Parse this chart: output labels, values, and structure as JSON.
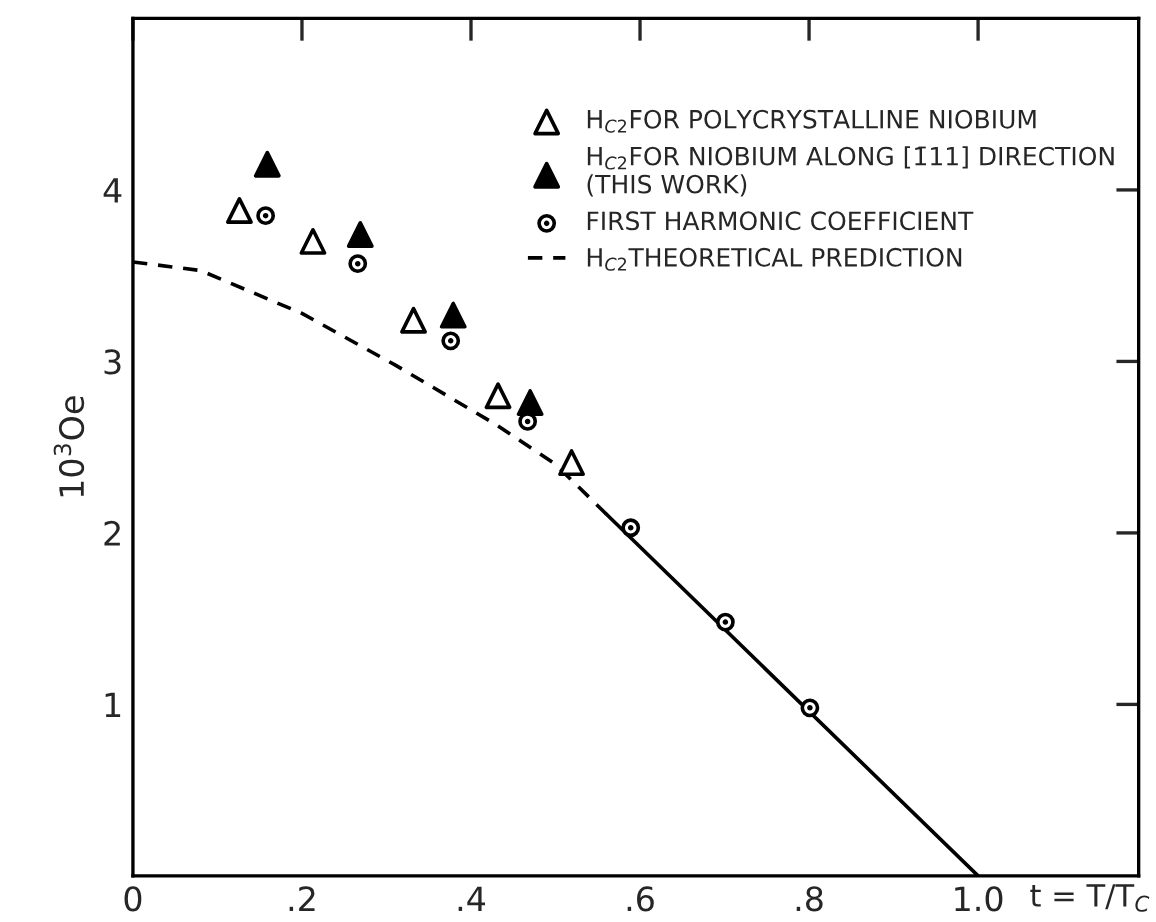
{
  "chart_data": {
    "type": "scatter",
    "xlabel": "t = T/T$_{C}$",
    "ylabel": "10$^{3}$Oe",
    "xlim": [
      0,
      1.19
    ],
    "ylim": [
      0,
      5.0
    ],
    "xticks": [
      0,
      {
        "value": 0.2,
        "label": ".2"
      },
      {
        "value": 0.4,
        "label": ".4"
      },
      {
        "value": 0.6,
        "label": ".6"
      },
      {
        "value": 0.8,
        "label": ".8"
      },
      {
        "value": 1.0,
        "label": "1.0"
      }
    ],
    "yticks": [
      1,
      2,
      3,
      4
    ],
    "grid": false,
    "legend": "top right",
    "series": [
      {
        "name": "H$_{C2}$FOR POLYCRYSTALLINE NIOBIUM",
        "marker": "triangle",
        "color": "#ffffff",
        "x": [
          0.126,
          0.213,
          0.332,
          0.432,
          0.519
        ],
        "values": [
          3.88,
          3.7,
          3.24,
          2.8,
          2.41
        ]
      },
      {
        "name": "H$_{C2}$FOR NIOBIUM ALONG [1̄11] DIRECTION\n(THIS WORK)",
        "marker": "triangle",
        "color": "#000000",
        "x": [
          0.159,
          0.269,
          0.379,
          0.47
        ],
        "values": [
          4.15,
          3.74,
          3.27,
          2.76
        ]
      },
      {
        "name": "FIRST HARMONIC COEFFICIENT",
        "marker": "circle",
        "color": "#ffffff",
        "x": [
          0.157,
          0.266,
          0.376,
          0.467,
          0.589,
          0.701,
          0.801
        ],
        "values": [
          3.85,
          3.57,
          3.12,
          2.65,
          2.03,
          1.48,
          0.98
        ]
      },
      {
        "name": "H$_{C2}$THEORETICAL PREDICTION",
        "type": "line",
        "line_style": "dashed",
        "marker": "none",
        "color": "#000000",
        "x": [
          0,
          0.08,
          0.2,
          0.31,
          0.43,
          0.5,
          0.56
        ],
        "values": [
          3.58,
          3.53,
          3.28,
          2.98,
          2.63,
          2.4,
          2.11
        ]
      },
      {
        "type": "line",
        "line_style": "solid",
        "marker": "none",
        "color": "#000000",
        "x": [
          0.56,
          1.0
        ],
        "values": [
          2.11,
          0
        ]
      }
    ]
  }
}
